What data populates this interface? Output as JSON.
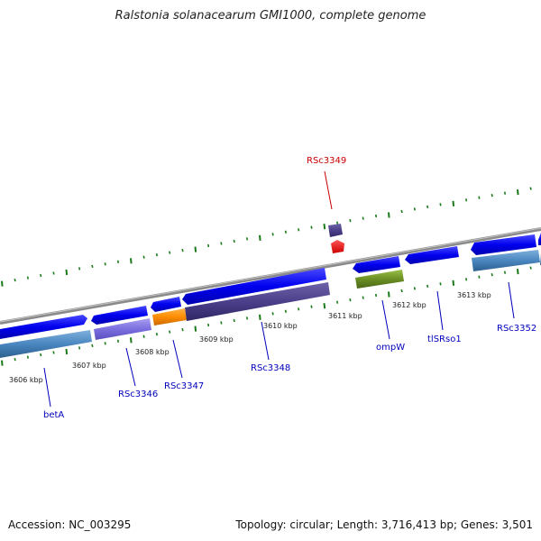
{
  "title": "Ralstonia solanacearum GMI1000, complete genome",
  "footer": {
    "accession": "Accession: NC_003295",
    "summary": "Topology: circular; Length: 3,716,413 bp; Genes: 3,501"
  },
  "colors": {
    "cds": "#0000ee",
    "label_blue": "#0000bb",
    "label_red": "#cc0000",
    "tick": "#1a7a1a",
    "backbone": "#8a8a8a"
  },
  "ruler": {
    "ticks": [
      {
        "label": "3606 kbp"
      },
      {
        "label": "3607 kbp"
      },
      {
        "label": "3608 kbp"
      },
      {
        "label": "3609 kbp"
      },
      {
        "label": "3610 kbp"
      },
      {
        "label": "3611 kbp"
      },
      {
        "label": "3612 kbp"
      },
      {
        "label": "3613 kbp"
      }
    ]
  },
  "gene_labels": [
    {
      "text": "betA",
      "color": "blue"
    },
    {
      "text": "RSc3346",
      "color": "blue"
    },
    {
      "text": "RSc3347",
      "color": "blue"
    },
    {
      "text": "RSc3348",
      "color": "blue"
    },
    {
      "text": "ompW",
      "color": "blue"
    },
    {
      "text": "tlSRso1",
      "color": "blue"
    },
    {
      "text": "RSc3352",
      "color": "blue"
    },
    {
      "text": "RSc3349",
      "color": "red"
    }
  ]
}
